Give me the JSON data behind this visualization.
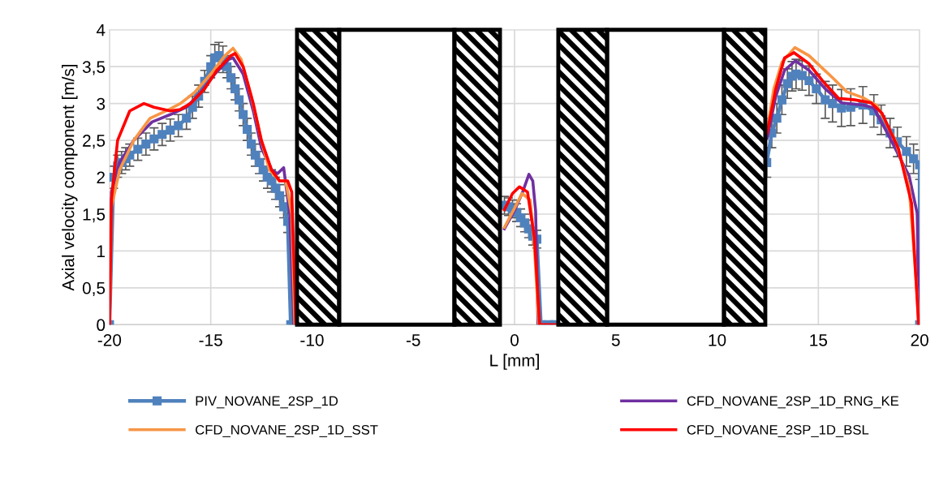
{
  "chart_data": {
    "type": "line",
    "xlabel": "L [mm]",
    "ylabel": "Axial velocity component [m/s]",
    "xlim": [
      -20,
      20
    ],
    "xticks": [
      -20,
      -15,
      -10,
      -5,
      0,
      5,
      10,
      15,
      20
    ],
    "ylim": [
      0,
      4
    ],
    "yticks": [
      0,
      {
        "value": 0.5,
        "label": "0,5"
      },
      1,
      {
        "value": 1.5,
        "label": "1,5"
      },
      2,
      {
        "value": 2.5,
        "label": "2,5"
      },
      3,
      {
        "value": 3.5,
        "label": "3,5"
      },
      4
    ],
    "grid": true,
    "legend": "bottom",
    "bands": [
      {
        "axis": "x",
        "from": -10.74,
        "to": -8.66,
        "color": "#000000"
      },
      {
        "axis": "x",
        "from": -8.66,
        "to": -2.97,
        "color": "#ffffff"
      },
      {
        "axis": "x",
        "from": -2.97,
        "to": -0.72,
        "color": "#000000"
      },
      {
        "axis": "x",
        "from": 2.16,
        "to": 4.57,
        "color": "#000000"
      },
      {
        "axis": "x",
        "from": 4.57,
        "to": 10.34,
        "color": "#ffffff"
      },
      {
        "axis": "x",
        "from": 10.34,
        "to": 12.38,
        "color": "#000000"
      }
    ],
    "series": [
      {
        "name": "PIV_NOVANE_2SP_1D",
        "color": "#4f81bd",
        "marker": "square",
        "x": [
          -20,
          -19.8,
          -19.6,
          -19.4,
          -19.2,
          -19.0,
          -18.6,
          -18.2,
          -17.8,
          -17.4,
          -17.0,
          -16.6,
          -16.2,
          -15.9,
          -15.6,
          -15.3,
          -15.0,
          -14.8,
          -14.6,
          -14.4,
          -14.2,
          -14.0,
          -13.8,
          -13.6,
          -13.4,
          -13.2,
          -13.0,
          -12.8,
          -12.6,
          -12.4,
          -12.2,
          -12.0,
          -11.8,
          -11.6,
          -11.4,
          -11.2,
          -11.05,
          -5,
          -0.5,
          -0.3,
          -0.1,
          0.1,
          0.3,
          0.5,
          0.7,
          0.9,
          1.1,
          1.3,
          1.7,
          2.0,
          7,
          12.45,
          12.7,
          12.95,
          13.2,
          13.47,
          13.7,
          13.9,
          14.2,
          14.54,
          14.9,
          15.34,
          15.7,
          16.14,
          16.6,
          17.2,
          17.74,
          18.1,
          18.54,
          18.9,
          19.35,
          19.7,
          20,
          20
        ],
        "values": [
          0,
          2.0,
          2.15,
          2.2,
          2.25,
          2.3,
          2.38,
          2.45,
          2.52,
          2.58,
          2.64,
          2.7,
          2.8,
          2.95,
          3.1,
          3.3,
          3.5,
          3.62,
          3.65,
          3.6,
          3.5,
          3.35,
          3.2,
          3.05,
          2.85,
          2.65,
          2.45,
          2.3,
          2.2,
          2.1,
          2.0,
          1.95,
          1.85,
          1.75,
          1.6,
          1.4,
          0,
          null,
          1.62,
          1.6,
          1.57,
          1.52,
          1.45,
          1.38,
          1.3,
          1.2,
          1.16,
          0,
          0,
          0,
          null,
          2.2,
          2.6,
          2.8,
          3.05,
          3.27,
          3.37,
          3.4,
          3.38,
          3.31,
          3.2,
          3.05,
          3.0,
          2.94,
          2.95,
          2.98,
          2.9,
          2.78,
          2.6,
          2.48,
          2.35,
          2.25,
          2.17,
          0
        ],
        "errors": [
          null,
          0.15,
          0.15,
          0.15,
          0.15,
          0.15,
          0.15,
          0.15,
          0.15,
          0.15,
          0.15,
          0.15,
          0.15,
          0.15,
          0.15,
          0.15,
          0.15,
          0.18,
          0.18,
          0.18,
          0.15,
          0.15,
          0.15,
          0.15,
          0.15,
          0.15,
          0.15,
          0.15,
          0.15,
          0.15,
          0.15,
          0.15,
          0.15,
          0.15,
          0.15,
          0.15,
          null,
          null,
          0.12,
          0.12,
          0.12,
          0.12,
          0.12,
          0.12,
          0.12,
          0.12,
          0.12,
          null,
          null,
          null,
          null,
          0.2,
          0.2,
          0.2,
          0.2,
          0.2,
          0.2,
          0.2,
          0.2,
          0.2,
          0.2,
          0.25,
          0.25,
          0.25,
          0.25,
          0.25,
          0.22,
          0.2,
          0.2,
          0.2,
          0.2,
          0.2,
          0.2,
          null
        ]
      },
      {
        "name": "CFD_NOVANE_2SP_1D_RNG_KE",
        "color": "#7030a0",
        "marker": "none",
        "x": [
          -20,
          -19.9,
          -19.5,
          -18.8,
          -17.9,
          -17.0,
          -16.2,
          -15.5,
          -14.8,
          -14.1,
          -13.9,
          -13.4,
          -12.9,
          -12.5,
          -12.0,
          -11.7,
          -11.4,
          -11.1,
          -10.9,
          -5,
          -0.5,
          0.0,
          0.4,
          0.71,
          0.9,
          1.04,
          1.16,
          7,
          12.47,
          12.9,
          13.33,
          13.87,
          14.54,
          15.34,
          16.14,
          17.2,
          17.74,
          18.54,
          19.48,
          19.88,
          19.96
        ],
        "values": [
          0,
          1.8,
          2.2,
          2.5,
          2.75,
          2.85,
          2.95,
          3.15,
          3.4,
          3.6,
          3.62,
          3.4,
          2.9,
          2.4,
          2.1,
          2.05,
          2.13,
          1.5,
          0,
          null,
          1.3,
          1.55,
          1.8,
          2.04,
          1.95,
          1.54,
          0,
          null,
          2.53,
          3.1,
          3.45,
          3.58,
          3.45,
          3.2,
          3.01,
          2.98,
          2.94,
          2.53,
          2.02,
          1.51,
          0
        ]
      },
      {
        "name": "CFD_NOVANE_2SP_1D_SST",
        "color": "#f79646",
        "marker": "none",
        "x": [
          -20,
          -19.9,
          -19.5,
          -18.8,
          -18.0,
          -17.2,
          -16.5,
          -15.8,
          -15.0,
          -14.3,
          -13.9,
          -13.5,
          -13.0,
          -12.5,
          -12.1,
          -11.6,
          -11.3,
          -11.0,
          -10.85,
          -5,
          -0.5,
          0.0,
          0.37,
          0.77,
          0.95,
          1.2,
          7,
          12.47,
          12.8,
          13.2,
          13.84,
          14.54,
          15.74,
          16.4,
          17.2,
          17.9,
          18.8,
          19.48,
          19.88,
          19.95
        ],
        "values": [
          0,
          1.6,
          2.1,
          2.5,
          2.8,
          2.9,
          3.0,
          3.15,
          3.4,
          3.65,
          3.75,
          3.6,
          3.1,
          2.5,
          2.1,
          1.95,
          1.95,
          1.5,
          0,
          null,
          1.32,
          1.58,
          1.78,
          1.69,
          1.2,
          0,
          null,
          2.64,
          3.2,
          3.56,
          3.76,
          3.65,
          3.34,
          3.16,
          3.08,
          2.97,
          2.5,
          1.87,
          0.4,
          0
        ]
      },
      {
        "name": "CFD_NOVANE_2SP_1D_BSL",
        "color": "#ff0000",
        "marker": "none",
        "x": [
          -20,
          -19.9,
          -19.6,
          -19.0,
          -18.3,
          -17.8,
          -17.0,
          -16.5,
          -16.0,
          -15.3,
          -14.7,
          -14.0,
          -13.8,
          -13.4,
          -12.9,
          -12.5,
          -12.0,
          -11.6,
          -11.2,
          -11.0,
          -10.85,
          -10.8,
          -5,
          -0.5,
          -0.1,
          0.24,
          0.64,
          0.98,
          1.24,
          2.1,
          7,
          12.47,
          12.9,
          13.33,
          13.8,
          14.54,
          15.2,
          16.0,
          16.8,
          17.6,
          18.14,
          18.95,
          19.6,
          19.95
        ],
        "values": [
          0,
          1.7,
          2.5,
          2.9,
          3.0,
          2.95,
          2.9,
          2.92,
          3.0,
          3.2,
          3.45,
          3.65,
          3.68,
          3.5,
          3.0,
          2.5,
          2.1,
          1.95,
          1.95,
          1.8,
          0.5,
          0,
          null,
          1.56,
          1.78,
          1.87,
          1.8,
          1.18,
          0,
          0,
          null,
          2.6,
          3.2,
          3.62,
          3.69,
          3.54,
          3.31,
          3.07,
          3.05,
          3.01,
          2.87,
          2.39,
          1.65,
          0
        ]
      }
    ]
  }
}
